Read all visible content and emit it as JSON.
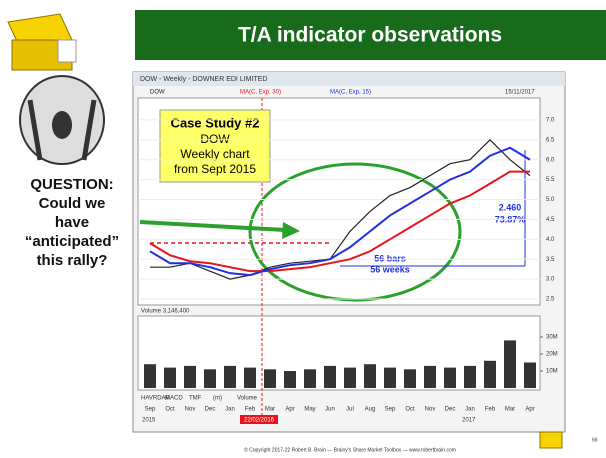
{
  "header": {
    "title": "T/A indicator observations"
  },
  "question": [
    "QUESTION:",
    "Could we",
    "have",
    "“anticipated”",
    "this rally?"
  ],
  "case_study": [
    "Case Study #2",
    "DOW",
    "Weekly chart",
    "from Sept 2015"
  ],
  "window": {
    "title": "DOW - Weekly - DOWNER EDI LIMITED",
    "date": "15/11/2017",
    "volume_label": "Volume 3,146,400",
    "marker_date": "22/02/2016",
    "tabs": [
      "HAVRDAR",
      "MACD",
      "TMF",
      "(m)",
      "Volume"
    ],
    "years": [
      "2015",
      "2017"
    ]
  },
  "annotations": {
    "rise": "2.460",
    "rise_pct": "73.87%",
    "bars": "56 bars",
    "weeks": "56 weeks"
  },
  "footer": "© Copyright 2017-22 Robert B. Brain — Brainy's Share Market Toolbox — www.robertbrain.com",
  "page": "66",
  "chart_data": [
    {
      "type": "line",
      "ylim": [
        2.4,
        7.5
      ],
      "yticks": [
        {
          "value": 2.5,
          "label": "2.5"
        },
        {
          "value": 3,
          "label": "3.0"
        },
        {
          "value": 3.5,
          "label": "3.5"
        },
        {
          "value": 4,
          "label": "4.0"
        },
        {
          "value": 4.5,
          "label": "4.5"
        },
        {
          "value": 5,
          "label": "5.0"
        },
        {
          "value": 5.5,
          "label": "5.5"
        },
        {
          "value": 6,
          "label": "6.0"
        },
        {
          "value": 6.5,
          "label": "6.5"
        },
        {
          "value": 7,
          "label": "7.0"
        }
      ],
      "series": [
        {
          "name": "DOW",
          "color": "#222222",
          "values": [
            3.3,
            3.3,
            3.4,
            3.2,
            3.0,
            3.1,
            3.3,
            3.4,
            3.45,
            3.5,
            4.2,
            4.7,
            5.1,
            5.3,
            5.6,
            5.9,
            6.0,
            6.5,
            6.0,
            5.6
          ]
        },
        {
          "name": "MA(C, Exp, 30)",
          "color": "#e8141c",
          "values": [
            3.9,
            3.6,
            3.45,
            3.4,
            3.3,
            3.2,
            3.2,
            3.25,
            3.3,
            3.4,
            3.5,
            3.7,
            4.0,
            4.3,
            4.6,
            4.9,
            5.1,
            5.4,
            5.7,
            5.7
          ]
        },
        {
          "name": "MA(C, Exp, 15)",
          "color": "#2030e0",
          "values": [
            3.7,
            3.4,
            3.4,
            3.3,
            3.15,
            3.1,
            3.25,
            3.35,
            3.4,
            3.5,
            3.8,
            4.2,
            4.6,
            4.9,
            5.2,
            5.5,
            5.7,
            6.1,
            6.3,
            6.0
          ]
        }
      ]
    },
    {
      "type": "bar",
      "color": "#333333",
      "categories": [
        "Sep",
        "Oct",
        "Nov",
        "Dec",
        "Jan",
        "Feb",
        "Mar",
        "Apr",
        "May",
        "Jun",
        "Jul",
        "Aug",
        "Sep",
        "Oct",
        "Nov",
        "Dec",
        "Jan",
        "Feb",
        "Mar",
        "Apr"
      ],
      "values": [
        14,
        12,
        13,
        11,
        13,
        12,
        11,
        10,
        11,
        13,
        12,
        14,
        12,
        11,
        13,
        12,
        13,
        16,
        28,
        15
      ],
      "ylim": [
        0,
        40
      ],
      "yticks": [
        {
          "value": 10,
          "label": "10M"
        },
        {
          "value": 20,
          "label": "20M"
        },
        {
          "value": 30,
          "label": "30M"
        }
      ]
    }
  ]
}
